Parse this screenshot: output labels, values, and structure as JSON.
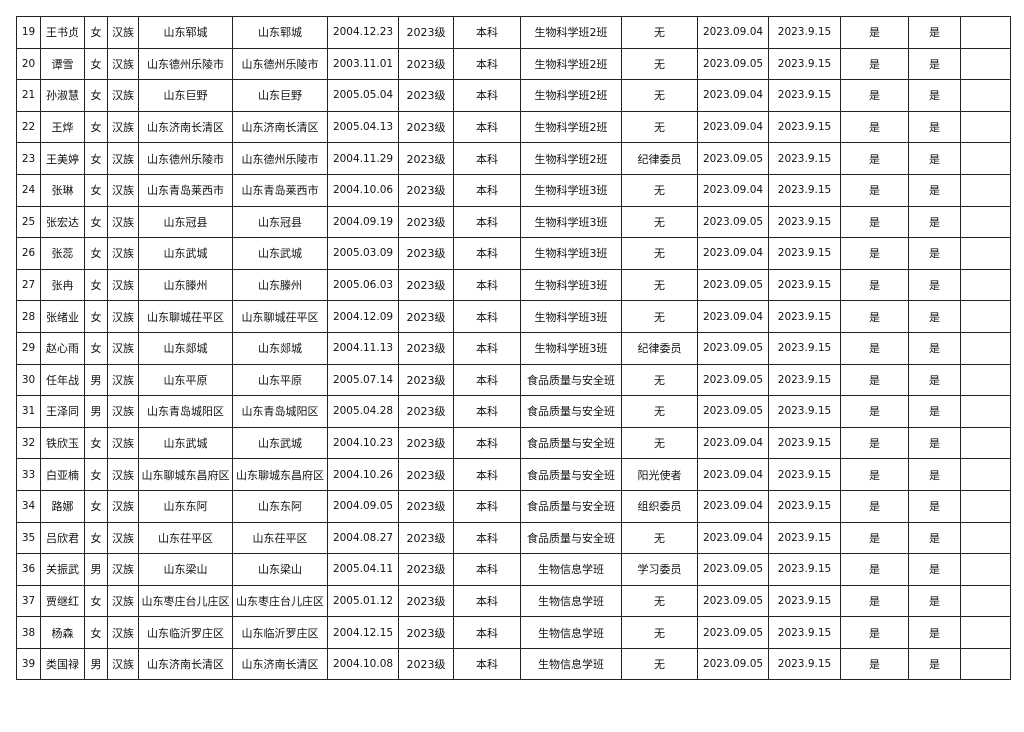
{
  "rows": [
    [
      "19",
      "王书贞",
      "女",
      "汉族",
      "山东郓城",
      "山东郓城",
      "2004.12.23",
      "2023级",
      "本科",
      "生物科学班2班",
      "无",
      "2023.09.04",
      "2023.9.15",
      "是",
      "是",
      ""
    ],
    [
      "20",
      "谭雪",
      "女",
      "汉族",
      "山东德州乐陵市",
      "山东德州乐陵市",
      "2003.11.01",
      "2023级",
      "本科",
      "生物科学班2班",
      "无",
      "2023.09.05",
      "2023.9.15",
      "是",
      "是",
      ""
    ],
    [
      "21",
      "孙淑慧",
      "女",
      "汉族",
      "山东巨野",
      "山东巨野",
      "2005.05.04",
      "2023级",
      "本科",
      "生物科学班2班",
      "无",
      "2023.09.04",
      "2023.9.15",
      "是",
      "是",
      ""
    ],
    [
      "22",
      "王烨",
      "女",
      "汉族",
      "山东济南长清区",
      "山东济南长清区",
      "2005.04.13",
      "2023级",
      "本科",
      "生物科学班2班",
      "无",
      "2023.09.04",
      "2023.9.15",
      "是",
      "是",
      ""
    ],
    [
      "23",
      "王美婷",
      "女",
      "汉族",
      "山东德州乐陵市",
      "山东德州乐陵市",
      "2004.11.29",
      "2023级",
      "本科",
      "生物科学班2班",
      "纪律委员",
      "2023.09.05",
      "2023.9.15",
      "是",
      "是",
      ""
    ],
    [
      "24",
      "张琳",
      "女",
      "汉族",
      "山东青岛莱西市",
      "山东青岛莱西市",
      "2004.10.06",
      "2023级",
      "本科",
      "生物科学班3班",
      "无",
      "2023.09.04",
      "2023.9.15",
      "是",
      "是",
      ""
    ],
    [
      "25",
      "张宏达",
      "女",
      "汉族",
      "山东冠县",
      "山东冠县",
      "2004.09.19",
      "2023级",
      "本科",
      "生物科学班3班",
      "无",
      "2023.09.05",
      "2023.9.15",
      "是",
      "是",
      ""
    ],
    [
      "26",
      "张蕊",
      "女",
      "汉族",
      "山东武城",
      "山东武城",
      "2005.03.09",
      "2023级",
      "本科",
      "生物科学班3班",
      "无",
      "2023.09.04",
      "2023.9.15",
      "是",
      "是",
      ""
    ],
    [
      "27",
      "张冉",
      "女",
      "汉族",
      "山东滕州",
      "山东滕州",
      "2005.06.03",
      "2023级",
      "本科",
      "生物科学班3班",
      "无",
      "2023.09.05",
      "2023.9.15",
      "是",
      "是",
      ""
    ],
    [
      "28",
      "张绪业",
      "女",
      "汉族",
      "山东聊城茌平区",
      "山东聊城茌平区",
      "2004.12.09",
      "2023级",
      "本科",
      "生物科学班3班",
      "无",
      "2023.09.04",
      "2023.9.15",
      "是",
      "是",
      ""
    ],
    [
      "29",
      "赵心雨",
      "女",
      "汉族",
      "山东郯城",
      "山东郯城",
      "2004.11.13",
      "2023级",
      "本科",
      "生物科学班3班",
      "纪律委员",
      "2023.09.05",
      "2023.9.15",
      "是",
      "是",
      ""
    ],
    [
      "30",
      "任年战",
      "男",
      "汉族",
      "山东平原",
      "山东平原",
      "2005.07.14",
      "2023级",
      "本科",
      "食品质量与安全班",
      "无",
      "2023.09.05",
      "2023.9.15",
      "是",
      "是",
      ""
    ],
    [
      "31",
      "王泽同",
      "男",
      "汉族",
      "山东青岛城阳区",
      "山东青岛城阳区",
      "2005.04.28",
      "2023级",
      "本科",
      "食品质量与安全班",
      "无",
      "2023.09.05",
      "2023.9.15",
      "是",
      "是",
      ""
    ],
    [
      "32",
      "铁欣玉",
      "女",
      "汉族",
      "山东武城",
      "山东武城",
      "2004.10.23",
      "2023级",
      "本科",
      "食品质量与安全班",
      "无",
      "2023.09.04",
      "2023.9.15",
      "是",
      "是",
      ""
    ],
    [
      "33",
      "白亚楠",
      "女",
      "汉族",
      "山东聊城东昌府区",
      "山东聊城东昌府区",
      "2004.10.26",
      "2023级",
      "本科",
      "食品质量与安全班",
      "阳光使者",
      "2023.09.04",
      "2023.9.15",
      "是",
      "是",
      ""
    ],
    [
      "34",
      "路娜",
      "女",
      "汉族",
      "山东东阿",
      "山东东阿",
      "2004.09.05",
      "2023级",
      "本科",
      "食品质量与安全班",
      "组织委员",
      "2023.09.04",
      "2023.9.15",
      "是",
      "是",
      ""
    ],
    [
      "35",
      "吕欣君",
      "女",
      "汉族",
      "山东茌平区",
      "山东茌平区",
      "2004.08.27",
      "2023级",
      "本科",
      "食品质量与安全班",
      "无",
      "2023.09.04",
      "2023.9.15",
      "是",
      "是",
      ""
    ],
    [
      "36",
      "关振武",
      "男",
      "汉族",
      "山东梁山",
      "山东梁山",
      "2005.04.11",
      "2023级",
      "本科",
      "生物信息学班",
      "学习委员",
      "2023.09.05",
      "2023.9.15",
      "是",
      "是",
      ""
    ],
    [
      "37",
      "贾继红",
      "女",
      "汉族",
      "山东枣庄台儿庄区",
      "山东枣庄台儿庄区",
      "2005.01.12",
      "2023级",
      "本科",
      "生物信息学班",
      "无",
      "2023.09.05",
      "2023.9.15",
      "是",
      "是",
      ""
    ],
    [
      "38",
      "杨森",
      "女",
      "汉族",
      "山东临沂罗庄区",
      "山东临沂罗庄区",
      "2004.12.15",
      "2023级",
      "本科",
      "生物信息学班",
      "无",
      "2023.09.05",
      "2023.9.15",
      "是",
      "是",
      ""
    ],
    [
      "39",
      "类国禄",
      "男",
      "汉族",
      "山东济南长清区",
      "山东济南长清区",
      "2004.10.08",
      "2023级",
      "本科",
      "生物信息学班",
      "无",
      "2023.09.05",
      "2023.9.15",
      "是",
      "是",
      ""
    ]
  ]
}
